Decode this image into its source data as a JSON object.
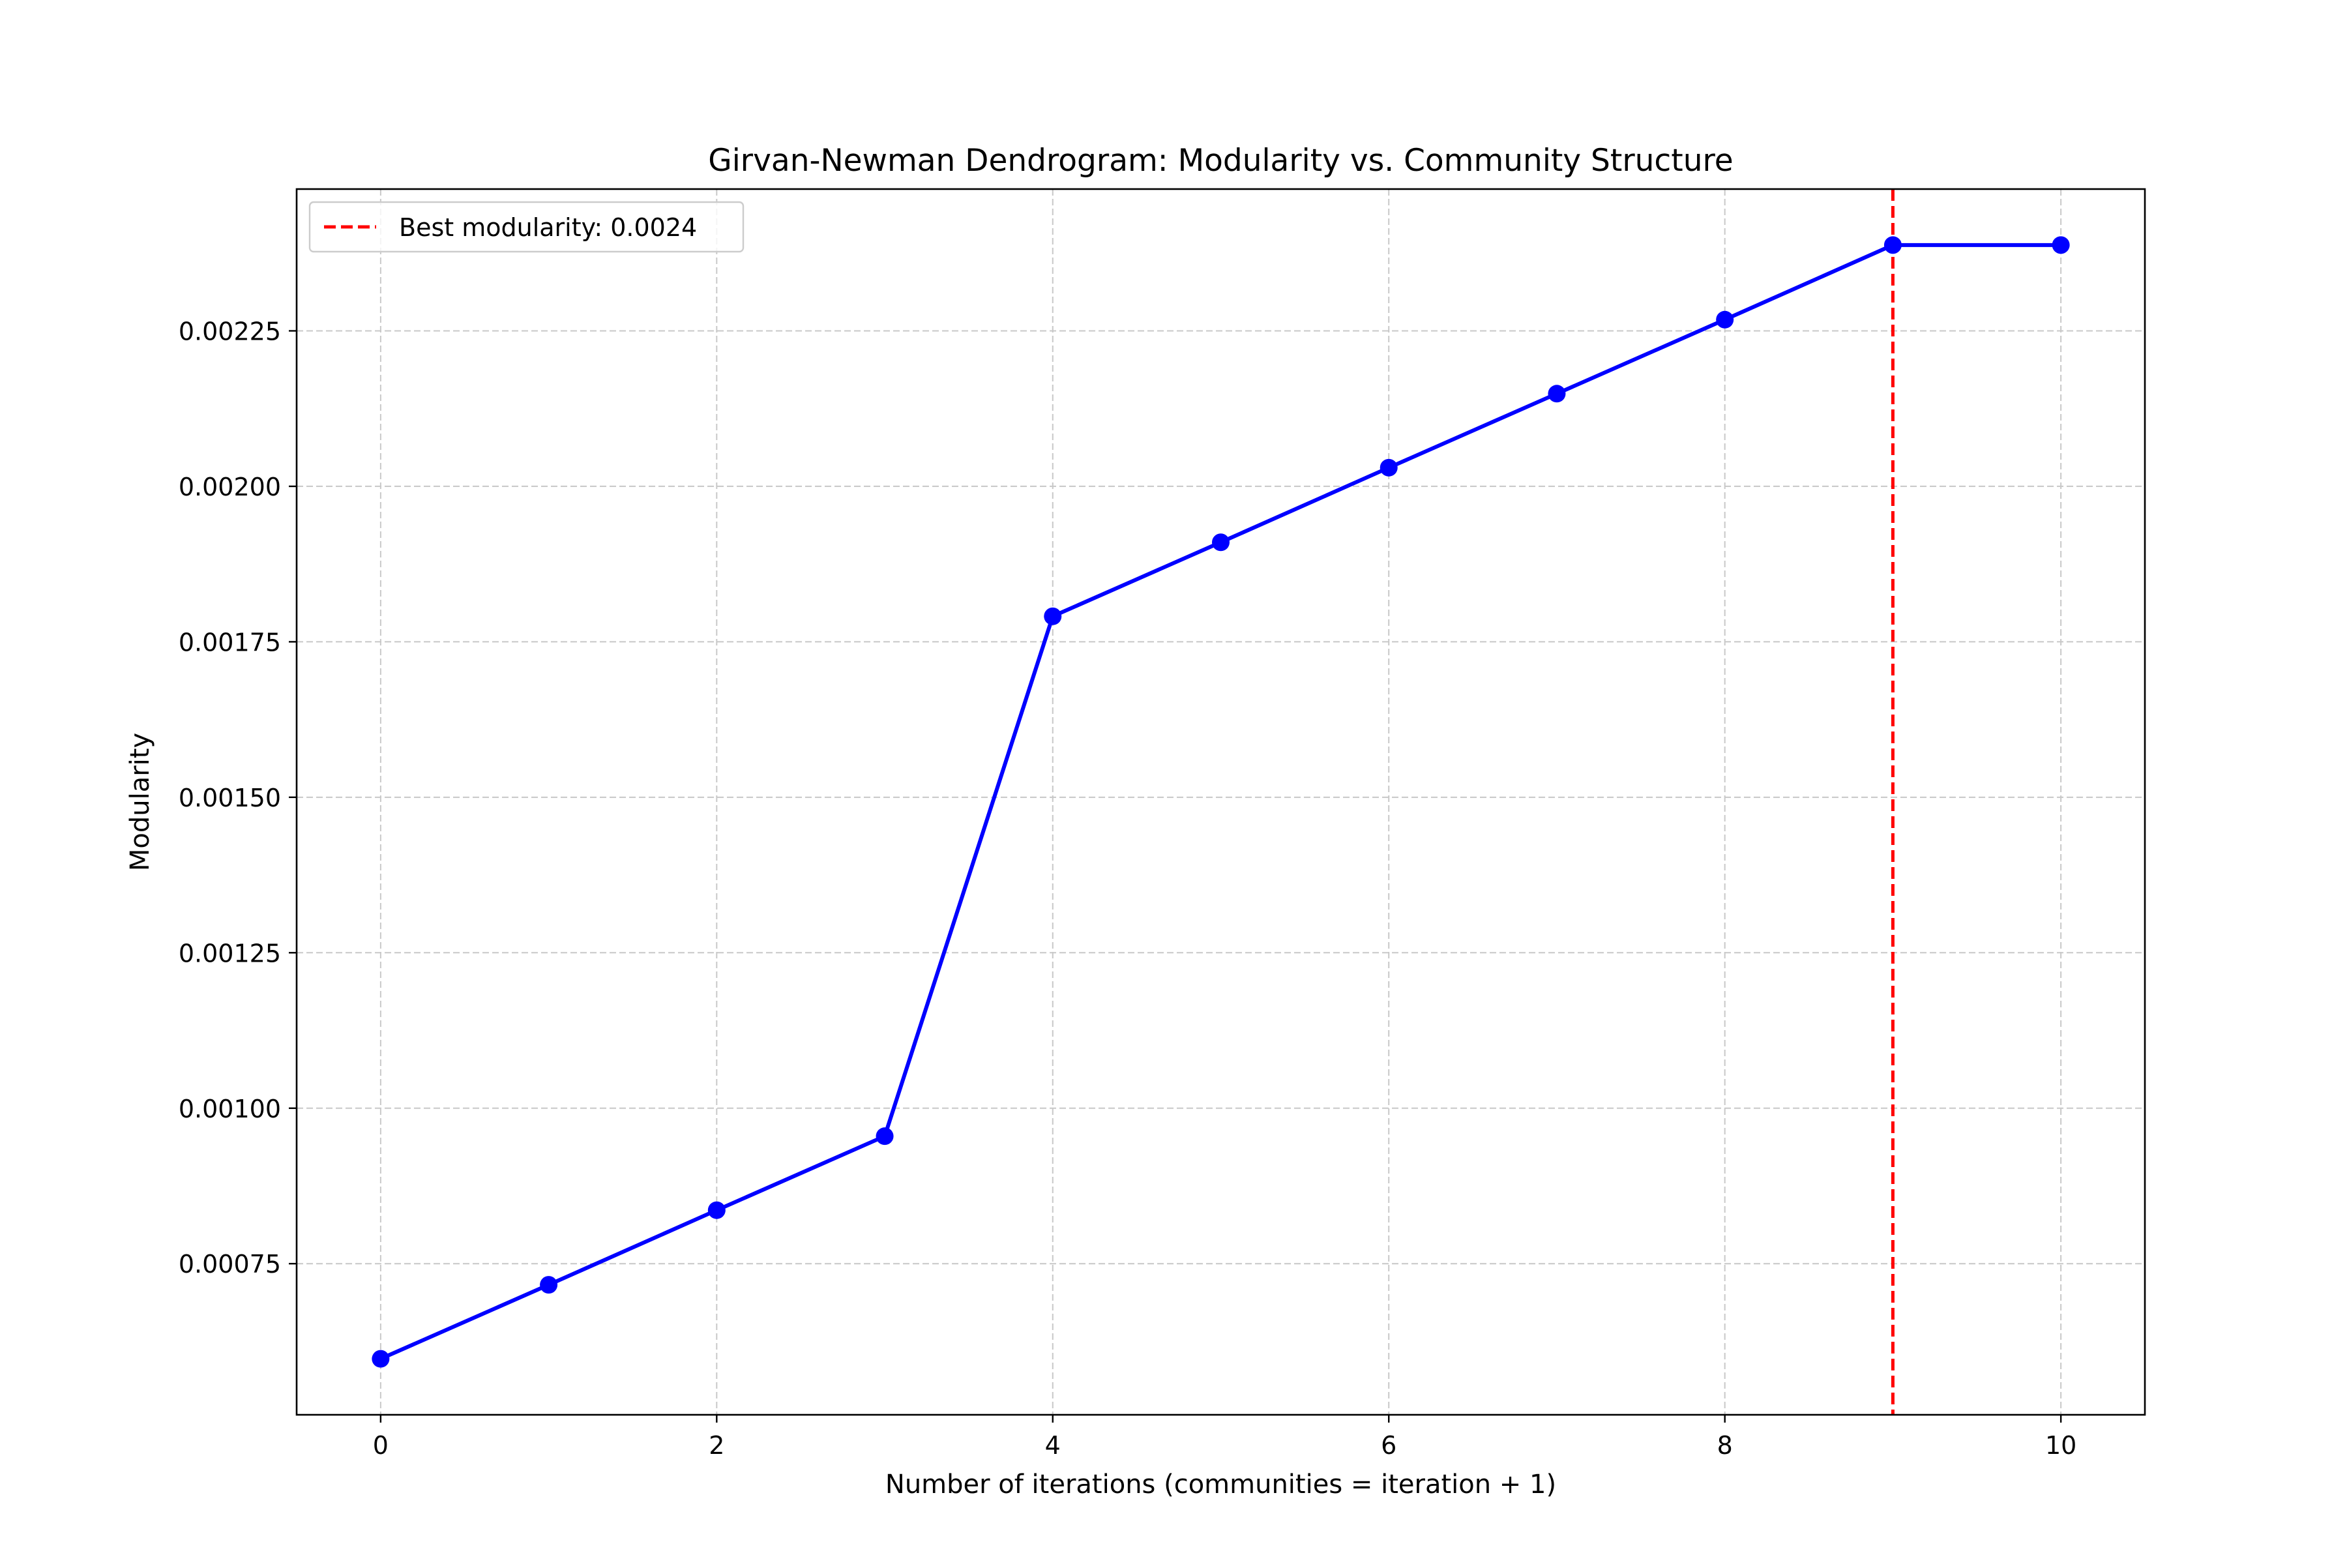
{
  "chart_data": {
    "type": "line",
    "title": "Girvan-Newman Dendrogram: Modularity vs. Community Structure",
    "xlabel": "Number of iterations (communities = iteration + 1)",
    "ylabel": "Modularity",
    "x": [
      0,
      1,
      2,
      3,
      4,
      5,
      6,
      7,
      8,
      9,
      10
    ],
    "series": [
      {
        "values": [
          0.000597,
          0.000716,
          0.000836,
          0.000955,
          0.001791,
          0.00191,
          0.00203,
          0.002149,
          0.002268,
          0.002388,
          0.002388
        ],
        "color": "#0000ff",
        "marker": "circle"
      }
    ],
    "reference_line": {
      "orientation": "vertical",
      "x": 9,
      "label": "Best modularity: 0.0024",
      "color": "#ff0000",
      "style": "dashed"
    },
    "xlim": [
      -0.5,
      10.5
    ],
    "ylim": [
      0.000507,
      0.002478
    ],
    "xticks": [
      0,
      2,
      4,
      6,
      8,
      10
    ],
    "xtick_labels": [
      "0",
      "2",
      "4",
      "6",
      "8",
      "10"
    ],
    "yticks": [
      0.00075,
      0.001,
      0.00125,
      0.0015,
      0.00175,
      0.002,
      0.00225
    ],
    "ytick_labels": [
      "0.00075",
      "0.00100",
      "0.00125",
      "0.00150",
      "0.00175",
      "0.00200",
      "0.00225"
    ],
    "grid": true,
    "grid_color": "#c8c8c8",
    "legend_position": "upper left"
  }
}
